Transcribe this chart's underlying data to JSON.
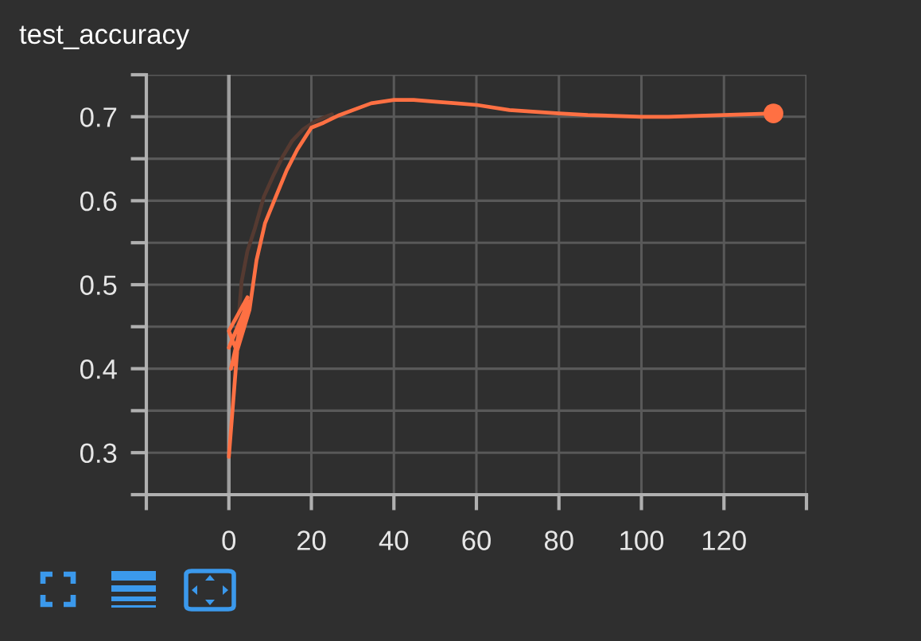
{
  "chart_data": {
    "type": "line",
    "title": "test_accuracy",
    "xlim": [
      -20,
      140
    ],
    "xticks": [
      {
        "value": -20,
        "label": null
      },
      0,
      20,
      40,
      60,
      80,
      100,
      120,
      {
        "value": 140,
        "label": null
      }
    ],
    "ylim": [
      0.25,
      0.75
    ],
    "yticks": [
      {
        "value": 0.25,
        "label": null
      },
      0.3,
      {
        "value": 0.35,
        "label": null
      },
      0.4,
      {
        "value": 0.45,
        "label": null
      },
      0.5,
      {
        "value": 0.55,
        "label": null
      },
      0.6,
      {
        "value": 0.65,
        "label": null
      },
      0.7,
      {
        "value": 0.75,
        "label": null
      }
    ],
    "grid": true,
    "line_style": "solid",
    "ref_lines": [
      {
        "axis": "x",
        "value": 0,
        "color": "#9e9e9e"
      }
    ],
    "series": [
      {
        "color": "#553a31",
        "x": [
          2,
          3.1,
          4.5,
          6.3,
          8.5,
          10.8,
          13,
          15.3,
          18,
          21,
          25
        ],
        "values": [
          0.44,
          0.504,
          0.54,
          0.567,
          0.605,
          0.63,
          0.652,
          0.671,
          0.685,
          0.695,
          0.703
        ]
      },
      {
        "color": "#ff7043",
        "x": [
          0,
          2,
          0,
          4.5,
          0.5,
          4,
          0,
          4.7,
          1,
          5,
          6.7,
          8.75,
          11.4,
          14,
          16.6,
          20,
          23,
          26.8,
          34.5,
          40,
          44.8,
          50,
          55.1,
          60.1,
          68,
          80,
          87,
          100,
          106.5,
          120,
          132
        ],
        "values": [
          0.295,
          0.42,
          0.445,
          0.485,
          0.4,
          0.47,
          0.425,
          0.48,
          0.405,
          0.47,
          0.529,
          0.573,
          0.605,
          0.636,
          0.661,
          0.687,
          0.693,
          0.702,
          0.716,
          0.72,
          0.72,
          0.718,
          0.716,
          0.714,
          0.708,
          0.704,
          0.702,
          0.7,
          0.7,
          0.702,
          0.704
        ]
      },
      {
        "type": "scatter",
        "marker": "circle",
        "color": "#ff7043",
        "x": [
          132
        ],
        "values": [
          0.704
        ]
      }
    ]
  }
}
